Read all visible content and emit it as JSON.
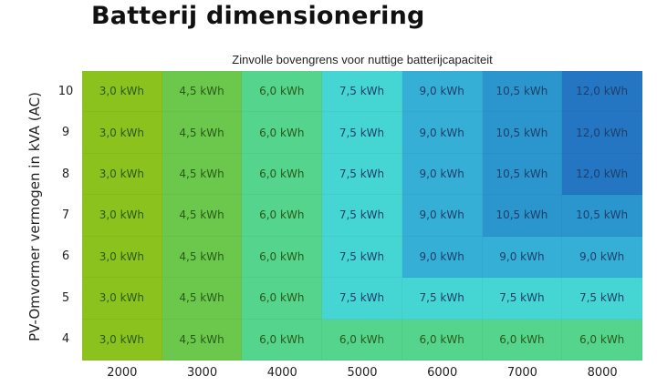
{
  "title": "Batterij dimensionering",
  "chart_data": {
    "type": "heatmap",
    "title": "Zinvolle bovengrens voor nuttige batterijcapaciteit",
    "xlabel": "",
    "ylabel": "PV-Omvormer vermogen in kVA (AC)",
    "x": [
      "2000",
      "3000",
      "4000",
      "5000",
      "6000",
      "7000",
      "8000"
    ],
    "y": [
      "10",
      "9",
      "8",
      "7",
      "6",
      "5",
      "4"
    ],
    "unit": "kWh",
    "values": [
      [
        3.0,
        4.5,
        6.0,
        7.5,
        9.0,
        10.5,
        12.0
      ],
      [
        3.0,
        4.5,
        6.0,
        7.5,
        9.0,
        10.5,
        12.0
      ],
      [
        3.0,
        4.5,
        6.0,
        7.5,
        9.0,
        10.5,
        12.0
      ],
      [
        3.0,
        4.5,
        6.0,
        7.5,
        9.0,
        10.5,
        10.5
      ],
      [
        3.0,
        4.5,
        6.0,
        7.5,
        9.0,
        9.0,
        9.0
      ],
      [
        3.0,
        4.5,
        6.0,
        7.5,
        7.5,
        7.5,
        7.5
      ],
      [
        3.0,
        4.5,
        6.0,
        6.0,
        6.0,
        6.0,
        6.0
      ]
    ],
    "labels": [
      [
        "3,0 kWh",
        "4,5 kWh",
        "6,0 kWh",
        "7,5 kWh",
        "9,0 kWh",
        "10,5 kWh",
        "12,0 kWh"
      ],
      [
        "3,0 kWh",
        "4,5 kWh",
        "6,0 kWh",
        "7,5 kWh",
        "9,0 kWh",
        "10,5 kWh",
        "12,0 kWh"
      ],
      [
        "3,0 kWh",
        "4,5 kWh",
        "6,0 kWh",
        "7,5 kWh",
        "9,0 kWh",
        "10,5 kWh",
        "12,0 kWh"
      ],
      [
        "3,0 kWh",
        "4,5 kWh",
        "6,0 kWh",
        "7,5 kWh",
        "9,0 kWh",
        "10,5 kWh",
        "10,5 kWh"
      ],
      [
        "3,0 kWh",
        "4,5 kWh",
        "6,0 kWh",
        "7,5 kWh",
        "9,0 kWh",
        "9,0 kWh",
        "9,0 kWh"
      ],
      [
        "3,0 kWh",
        "4,5 kWh",
        "6,0 kWh",
        "7,5 kWh",
        "7,5 kWh",
        "7,5 kWh",
        "7,5 kWh"
      ],
      [
        "3,0 kWh",
        "4,5 kWh",
        "6,0 kWh",
        "6,0 kWh",
        "6,0 kWh",
        "6,0 kWh",
        "6,0 kWh"
      ]
    ],
    "color_scale": {
      "3": "#8cc21e",
      "4.5": "#6cc84c",
      "6": "#55d48e",
      "7.5": "#45d6d4",
      "9": "#36afd6",
      "10.5": "#2b95ce",
      "12": "#2476c2"
    },
    "text_colors": {
      "green": "#2a5a1a",
      "blue": "#1f3f6a"
    }
  }
}
